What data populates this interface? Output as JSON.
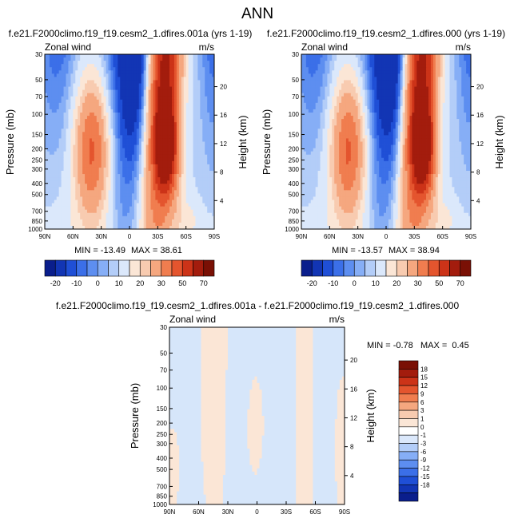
{
  "page_title": "ANN",
  "colors": {
    "cold": [
      "#0a1e8c",
      "#1235b4",
      "#1f4fd6",
      "#3b6fe8",
      "#5d8ef0",
      "#86aef6",
      "#b3cdf8",
      "#dbe8fb"
    ],
    "warm": [
      "#fbe6d6",
      "#f8cbb0",
      "#f5a77f",
      "#f07d4f",
      "#e4552e",
      "#cc3318",
      "#a31c0d",
      "#7a1005"
    ]
  },
  "chart_data": [
    {
      "type": "heatmap",
      "title": "f.e21.F2000climo.f19_f19.cesm2_1.dfires.001a (yrs 1-19)",
      "left_label": "Zonal wind",
      "right_label": "m/s",
      "ylabel": "Pressure (mb)",
      "ylabel_right": "Height (km)",
      "x_ticks": [
        "90N",
        "60N",
        "30N",
        "0",
        "30S",
        "60S",
        "90S"
      ],
      "y_ticks": [
        "30",
        "50",
        "70",
        "100",
        "150",
        "200",
        "250",
        "300",
        "400",
        "500",
        "700",
        "850",
        "1000"
      ],
      "height_ticks": [
        "20",
        "16",
        "12",
        "8",
        "4"
      ],
      "min_label": "MIN = -13.49",
      "max_label": "MAX = 38.61",
      "levels": [
        "-20",
        "-10",
        "0",
        "10",
        "20",
        "30",
        "50",
        "70"
      ],
      "min": -13.49,
      "max": 38.61
    },
    {
      "type": "heatmap",
      "title": "f.e21.F2000climo.f19_f19.cesm2_1.dfires.000 (yrs 1-19)",
      "left_label": "Zonal wind",
      "right_label": "m/s",
      "ylabel": "Pressure (mb)",
      "ylabel_right": "Height (km)",
      "x_ticks": [
        "90N",
        "60N",
        "30N",
        "0",
        "30S",
        "60S",
        "90S"
      ],
      "y_ticks": [
        "30",
        "50",
        "70",
        "100",
        "150",
        "200",
        "250",
        "300",
        "400",
        "500",
        "700",
        "850",
        "1000"
      ],
      "height_ticks": [
        "20",
        "16",
        "12",
        "8",
        "4"
      ],
      "min_label": "MIN = -13.57",
      "max_label": "MAX = 38.94",
      "levels": [
        "-20",
        "-10",
        "0",
        "10",
        "20",
        "30",
        "50",
        "70"
      ],
      "min": -13.57,
      "max": 38.94
    },
    {
      "type": "heatmap",
      "title": "f.e21.F2000climo.f19_f19.cesm2_1.dfires.001a - f.e21.F2000climo.f19_f19.cesm2_1.dfires.000",
      "left_label": "Zonal wind",
      "right_label": "m/s",
      "ylabel": "Pressure (mb)",
      "ylabel_right": "Height (km)",
      "x_ticks": [
        "90N",
        "60N",
        "30N",
        "0",
        "30S",
        "60S",
        "90S"
      ],
      "y_ticks": [
        "30",
        "50",
        "70",
        "100",
        "150",
        "200",
        "250",
        "300",
        "400",
        "500",
        "700",
        "850",
        "1000"
      ],
      "height_ticks": [
        "20",
        "16",
        "12",
        "8",
        "4"
      ],
      "minmax_label": "MIN = -0.78   MAX =  0.45",
      "levels": [
        "18",
        "15",
        "12",
        "9",
        "6",
        "3",
        "1",
        "0",
        "-1",
        "-3",
        "-6",
        "-9",
        "-12",
        "-15",
        "-18"
      ],
      "min": -0.78,
      "max": 0.45
    }
  ]
}
